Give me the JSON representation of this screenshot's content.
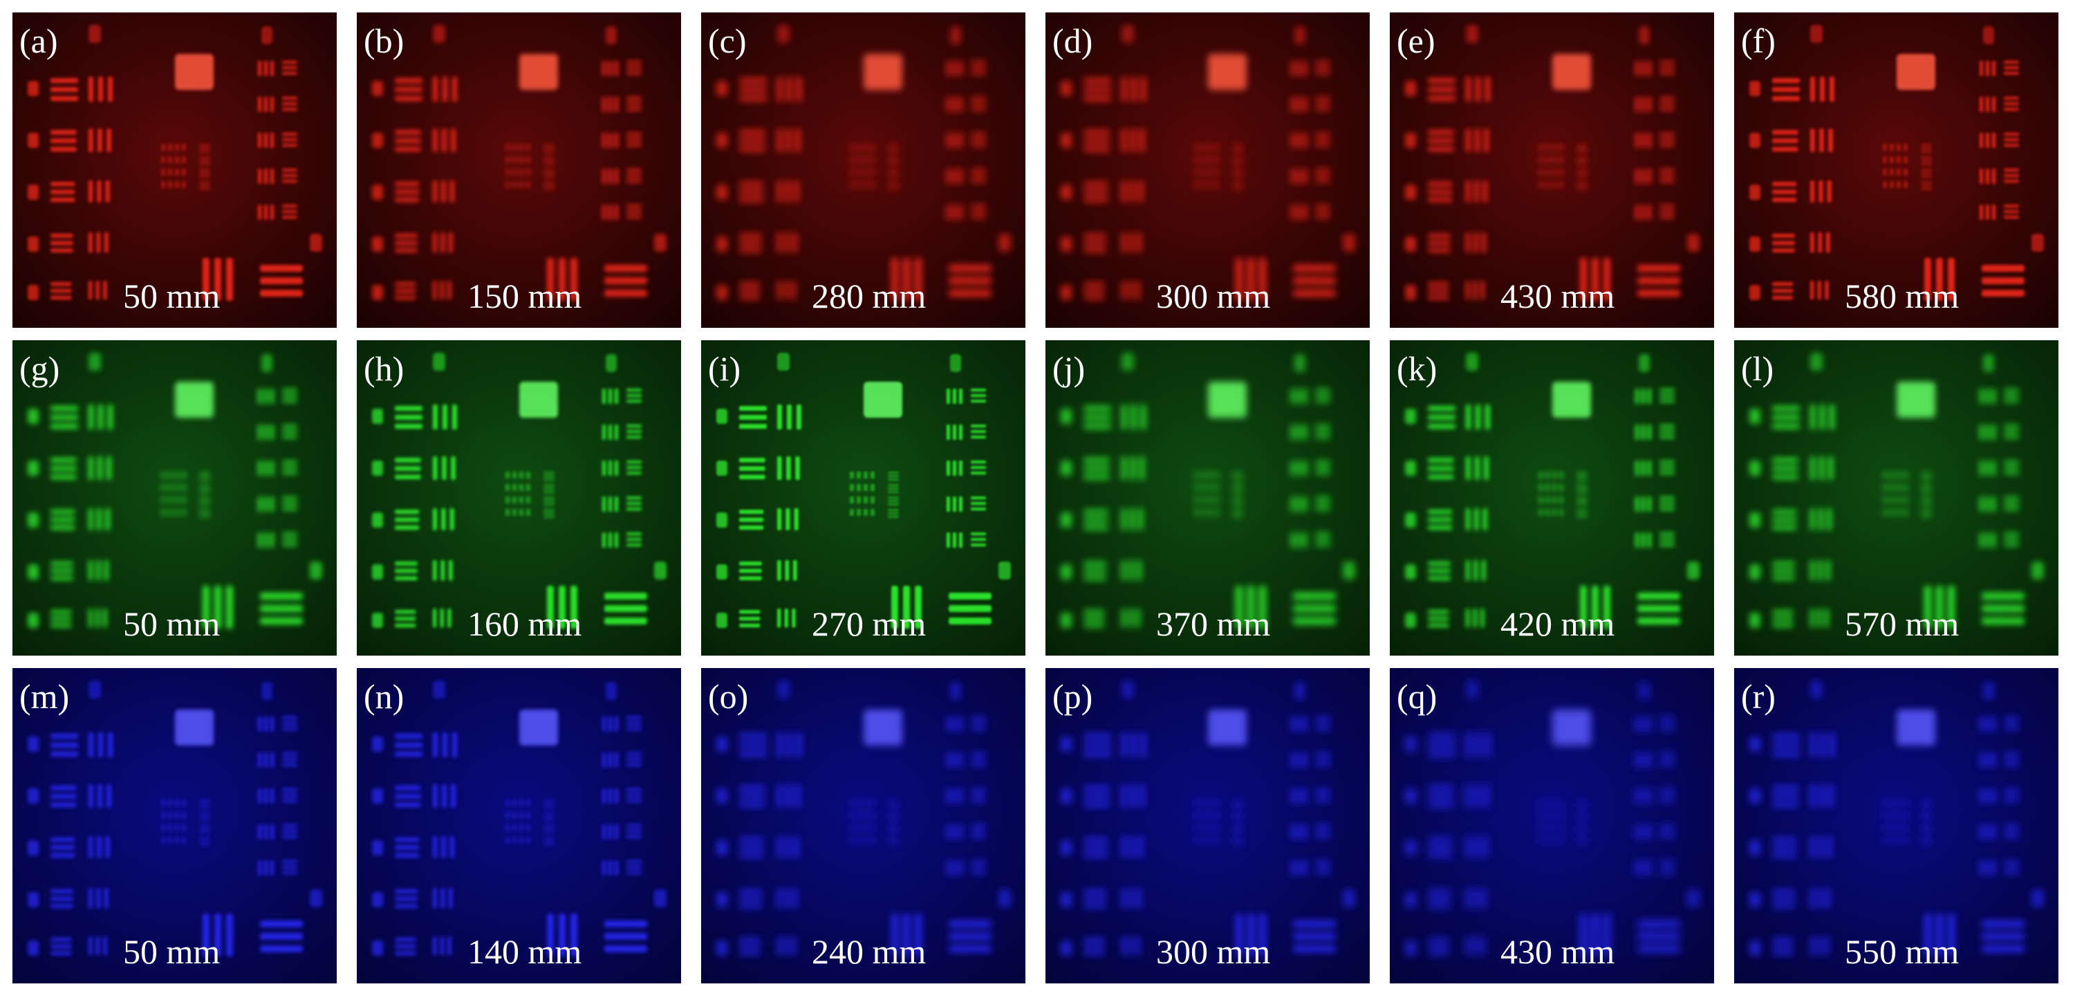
{
  "figure": {
    "background": "#ffffff",
    "row_themes": {
      "red": {
        "bg_dark": "#1a0202",
        "bg_mid": "#5a0808",
        "bright": "#ff2a1a",
        "glow": "#ff5a40"
      },
      "green": {
        "bg_dark": "#062006",
        "bg_mid": "#0e4a10",
        "bright": "#33ff33",
        "glow": "#66ff66"
      },
      "blue": {
        "bg_dark": "#03033a",
        "bg_mid": "#0a0a80",
        "bright": "#2a2aff",
        "glow": "#5a5aff"
      }
    },
    "panels": [
      {
        "label": "(a)",
        "distance": "50 mm",
        "theme": "red"
      },
      {
        "label": "(b)",
        "distance": "150 mm",
        "theme": "red"
      },
      {
        "label": "(c)",
        "distance": "280 mm",
        "theme": "red"
      },
      {
        "label": "(d)",
        "distance": "300 mm",
        "theme": "red"
      },
      {
        "label": "(e)",
        "distance": "430 mm",
        "theme": "red"
      },
      {
        "label": "(f)",
        "distance": "580 mm",
        "theme": "red"
      },
      {
        "label": "(g)",
        "distance": "50 mm",
        "theme": "green"
      },
      {
        "label": "(h)",
        "distance": "160 mm",
        "theme": "green"
      },
      {
        "label": "(i)",
        "distance": "270 mm",
        "theme": "green"
      },
      {
        "label": "(j)",
        "distance": "370 mm",
        "theme": "green"
      },
      {
        "label": "(k)",
        "distance": "420 mm",
        "theme": "green"
      },
      {
        "label": "(l)",
        "distance": "570 mm",
        "theme": "green"
      },
      {
        "label": "(m)",
        "distance": "50 mm",
        "theme": "blue"
      },
      {
        "label": "(n)",
        "distance": "140 mm",
        "theme": "blue"
      },
      {
        "label": "(o)",
        "distance": "240 mm",
        "theme": "blue"
      },
      {
        "label": "(p)",
        "distance": "300 mm",
        "theme": "blue"
      },
      {
        "label": "(q)",
        "distance": "430 mm",
        "theme": "blue"
      },
      {
        "label": "(r)",
        "distance": "550 mm",
        "theme": "blue"
      }
    ]
  }
}
